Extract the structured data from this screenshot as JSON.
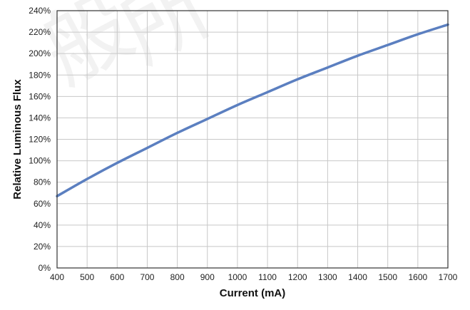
{
  "chart_data": {
    "type": "line",
    "title": "",
    "xlabel": "Current (mA)",
    "ylabel": "Relative Luminous Flux",
    "xlim": [
      400,
      1700
    ],
    "ylim": [
      0,
      240
    ],
    "x_ticks": [
      400,
      500,
      600,
      700,
      800,
      900,
      1000,
      1100,
      1200,
      1300,
      1400,
      1500,
      1600,
      1700
    ],
    "x_tick_labels": [
      "400",
      "500",
      "600",
      "700",
      "800",
      "900",
      "1000",
      "1100",
      "1200",
      "1300",
      "1400",
      "1500",
      "1600",
      "1700"
    ],
    "y_ticks": [
      0,
      20,
      40,
      60,
      80,
      100,
      120,
      140,
      160,
      180,
      200,
      220,
      240
    ],
    "y_tick_labels": [
      "0%",
      "20%",
      "40%",
      "60%",
      "80%",
      "100%",
      "120%",
      "140%",
      "160%",
      "180%",
      "200%",
      "220%",
      "240%"
    ],
    "grid": true,
    "legend": "none",
    "series": [
      {
        "color": "#5b7fc0",
        "x": [
          400,
          500,
          600,
          700,
          800,
          900,
          1000,
          1100,
          1200,
          1300,
          1400,
          1500,
          1600,
          1700
        ],
        "y": [
          67,
          83,
          98,
          112,
          126,
          139,
          152,
          164,
          176,
          187,
          198,
          208,
          218,
          227
        ]
      }
    ],
    "watermark_chars": [
      "般",
      "所"
    ]
  }
}
